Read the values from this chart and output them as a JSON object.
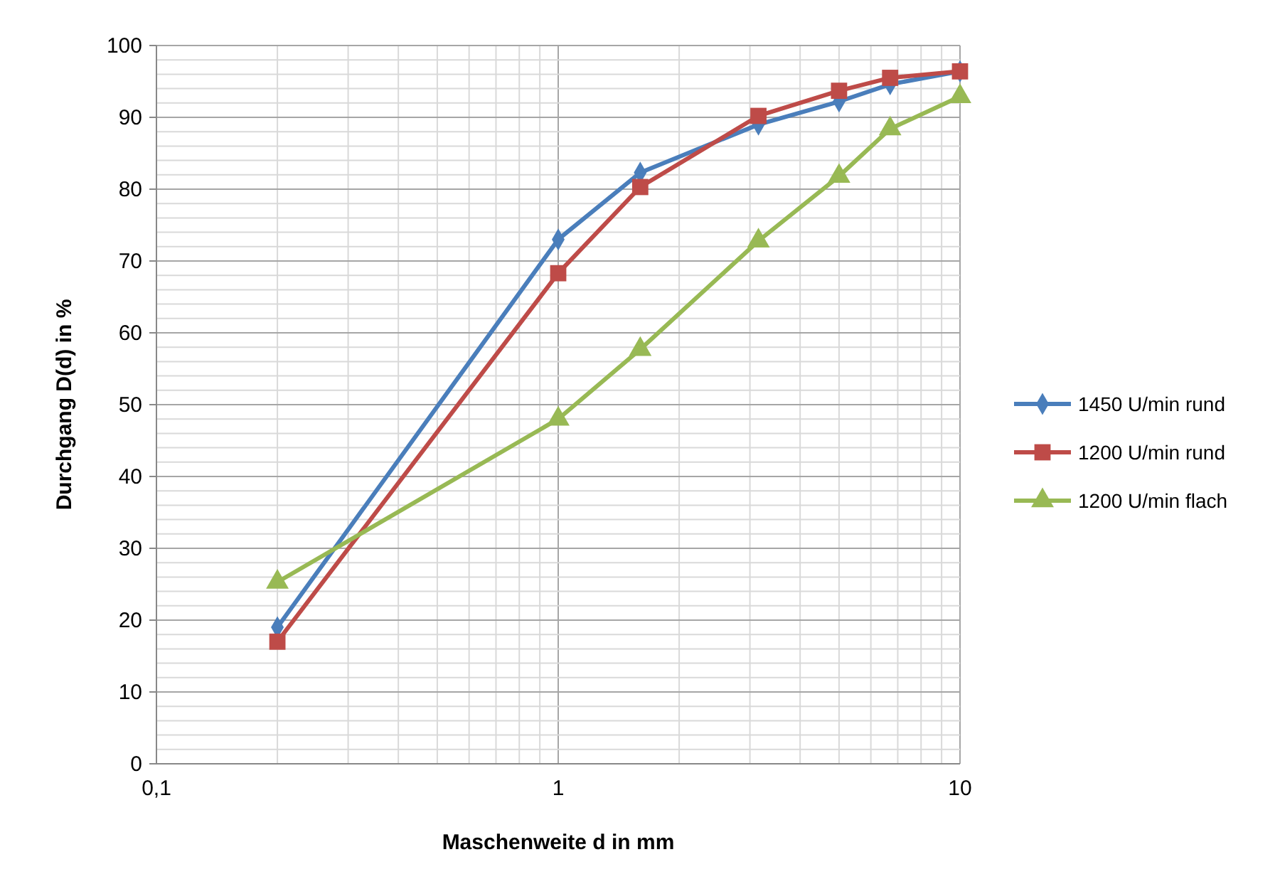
{
  "chart_data": {
    "type": "line",
    "xlabel": "Maschenweite d in mm",
    "ylabel": "Durchgang D(d) in %",
    "log": "x",
    "grid": true,
    "legend": "right",
    "line_style": "solid",
    "xlim": [
      0.1,
      10
    ],
    "ylim": [
      0,
      100
    ],
    "xticks": [
      {
        "value": 0.1,
        "label": "0,1"
      },
      {
        "value": 0.2,
        "label": null
      },
      {
        "value": 0.3,
        "label": null
      },
      {
        "value": 0.4,
        "label": null
      },
      {
        "value": 0.5,
        "label": null
      },
      {
        "value": 0.6,
        "label": null
      },
      {
        "value": 0.7,
        "label": null
      },
      {
        "value": 0.8,
        "label": null
      },
      {
        "value": 0.9,
        "label": null
      },
      1,
      {
        "value": 2,
        "label": null
      },
      {
        "value": 3,
        "label": null
      },
      {
        "value": 4,
        "label": null
      },
      {
        "value": 5,
        "label": null
      },
      {
        "value": 6,
        "label": null
      },
      {
        "value": 7,
        "label": null
      },
      {
        "value": 8,
        "label": null
      },
      {
        "value": 9,
        "label": null
      },
      10
    ],
    "yticks": [
      0,
      {
        "value": 2,
        "label": null
      },
      {
        "value": 4,
        "label": null
      },
      {
        "value": 6,
        "label": null
      },
      {
        "value": 8,
        "label": null
      },
      10,
      {
        "value": 12,
        "label": null
      },
      {
        "value": 14,
        "label": null
      },
      {
        "value": 16,
        "label": null
      },
      {
        "value": 18,
        "label": null
      },
      20,
      {
        "value": 22,
        "label": null
      },
      {
        "value": 24,
        "label": null
      },
      {
        "value": 26,
        "label": null
      },
      {
        "value": 28,
        "label": null
      },
      30,
      {
        "value": 32,
        "label": null
      },
      {
        "value": 34,
        "label": null
      },
      {
        "value": 36,
        "label": null
      },
      {
        "value": 38,
        "label": null
      },
      40,
      {
        "value": 42,
        "label": null
      },
      {
        "value": 44,
        "label": null
      },
      {
        "value": 46,
        "label": null
      },
      {
        "value": 48,
        "label": null
      },
      50,
      {
        "value": 52,
        "label": null
      },
      {
        "value": 54,
        "label": null
      },
      {
        "value": 56,
        "label": null
      },
      {
        "value": 58,
        "label": null
      },
      60,
      {
        "value": 62,
        "label": null
      },
      {
        "value": 64,
        "label": null
      },
      {
        "value": 66,
        "label": null
      },
      {
        "value": 68,
        "label": null
      },
      70,
      {
        "value": 72,
        "label": null
      },
      {
        "value": 74,
        "label": null
      },
      {
        "value": 76,
        "label": null
      },
      {
        "value": 78,
        "label": null
      },
      80,
      {
        "value": 82,
        "label": null
      },
      {
        "value": 84,
        "label": null
      },
      {
        "value": 86,
        "label": null
      },
      {
        "value": 88,
        "label": null
      },
      90,
      {
        "value": 92,
        "label": null
      },
      {
        "value": 94,
        "label": null
      },
      {
        "value": 96,
        "label": null
      },
      {
        "value": 98,
        "label": null
      },
      100
    ],
    "x": [
      0.2,
      1,
      1.6,
      3.15,
      5,
      6.7,
      10
    ],
    "series": [
      {
        "name": "1450 U/min rund",
        "color": "#4a7ebb",
        "marker": "diamond",
        "values": [
          19,
          73,
          82.3,
          89,
          92.2,
          94.6,
          96.4
        ]
      },
      {
        "name": "1200 U/min rund",
        "color": "#be4b48",
        "marker": "square",
        "values": [
          17,
          68.3,
          80.3,
          90.2,
          93.7,
          95.5,
          96.4
        ]
      },
      {
        "name": "1200 U/min flach",
        "color": "#98b954",
        "marker": "triangle",
        "values": [
          25.3,
          48,
          57.7,
          72.8,
          81.8,
          88.4,
          92.9
        ]
      }
    ]
  }
}
